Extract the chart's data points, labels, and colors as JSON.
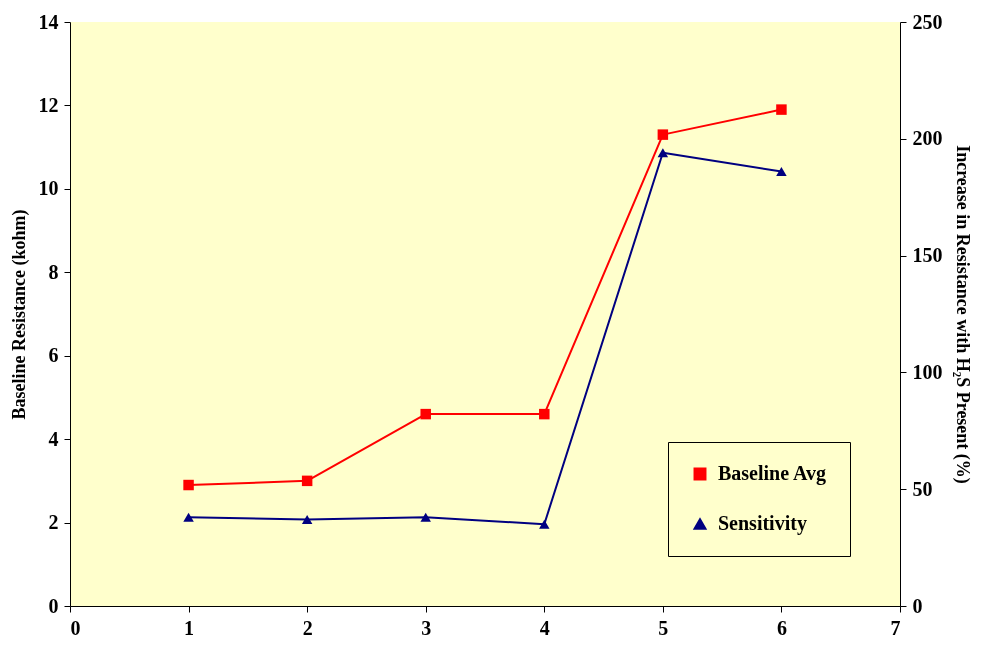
{
  "chart_data": {
    "type": "line",
    "ylabel": "Baseline Resistance (kohm)",
    "y2label": "Increase in Resistance with H₂S Present (%)",
    "x": [
      1,
      2,
      3,
      4,
      5,
      6
    ],
    "series": [
      {
        "name": "Baseline Avg",
        "color": "#ff0000",
        "marker": "square",
        "values": [
          2.9,
          3.0,
          4.6,
          4.6,
          11.3,
          11.9
        ]
      },
      {
        "name": "Sensitivity",
        "color": "#000080",
        "marker": "triangle",
        "axis": "y2",
        "values": [
          38,
          37,
          38,
          35,
          194,
          186
        ]
      }
    ],
    "xlim": [
      0,
      7
    ],
    "xticks": [
      0,
      1,
      2,
      3,
      4,
      5,
      6,
      7
    ],
    "ylim": [
      0,
      14
    ],
    "yticks": [
      0,
      2,
      4,
      6,
      8,
      10,
      12,
      14
    ],
    "y2lim": [
      0,
      250
    ],
    "y2ticks": [
      0,
      50,
      100,
      150,
      200,
      250
    ],
    "grid": false,
    "legend": "bottom right"
  }
}
